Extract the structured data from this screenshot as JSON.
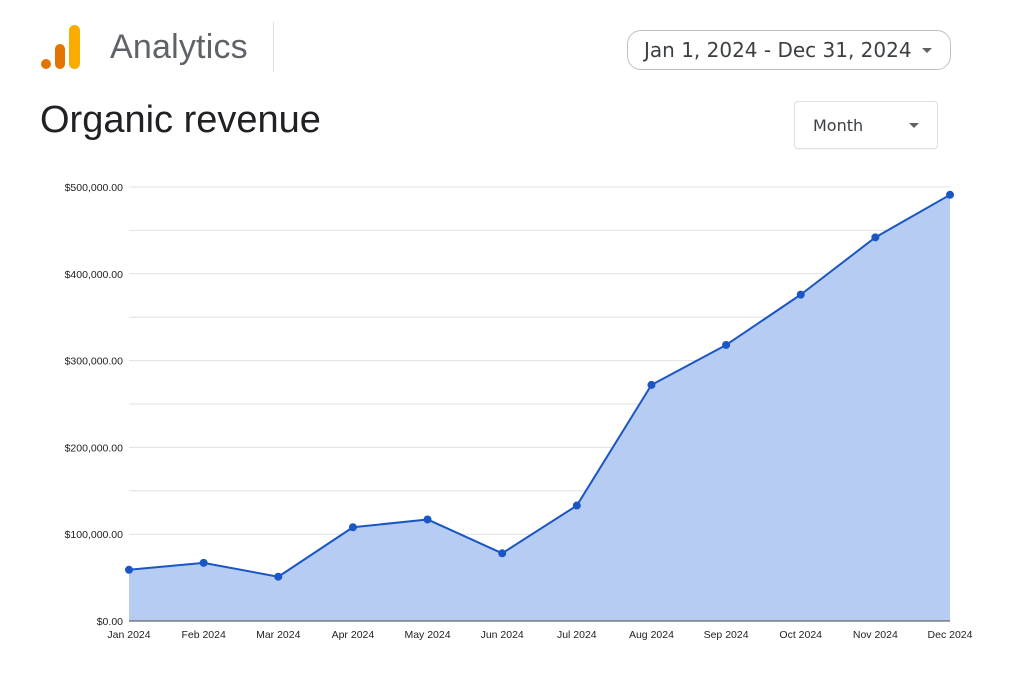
{
  "header": {
    "brand_name": "Analytics",
    "logo_colors": [
      "#e37400",
      "#f9ab00",
      "#f9ab00"
    ],
    "date_range": "Jan 1, 2024 - Dec 31, 2024",
    "date_range_icon": "dropdown-caret-icon"
  },
  "page": {
    "title": "Organic revenue",
    "period_select": {
      "selected": "Month",
      "icon": "dropdown-caret-icon"
    }
  },
  "colors": {
    "line": "#1a56c4",
    "fill": "#b7ccf2",
    "grid": "#e0e0e0",
    "axis_text": "#222222"
  },
  "chart_data": {
    "type": "area",
    "title": "",
    "xlabel": "",
    "ylabel": "",
    "categories": [
      "Jan 2024",
      "Feb 2024",
      "Mar 2024",
      "Apr 2024",
      "May 2024",
      "Jun 2024",
      "Jul 2024",
      "Aug 2024",
      "Sep 2024",
      "Oct 2024",
      "Nov 2024",
      "Dec 2024"
    ],
    "series": [
      {
        "values": [
          59000,
          67000,
          51000,
          108000,
          117000,
          78000,
          133000,
          272000,
          318000,
          376000,
          442000,
          491000
        ]
      }
    ],
    "ylim": [
      0,
      500000
    ],
    "yticks": [
      "$0.00",
      "$100,000.00",
      "$200,000.00",
      "$300,000.00",
      "$400,000.00",
      "$500,000.00"
    ],
    "grid": true,
    "markers": true,
    "legend": "none"
  }
}
